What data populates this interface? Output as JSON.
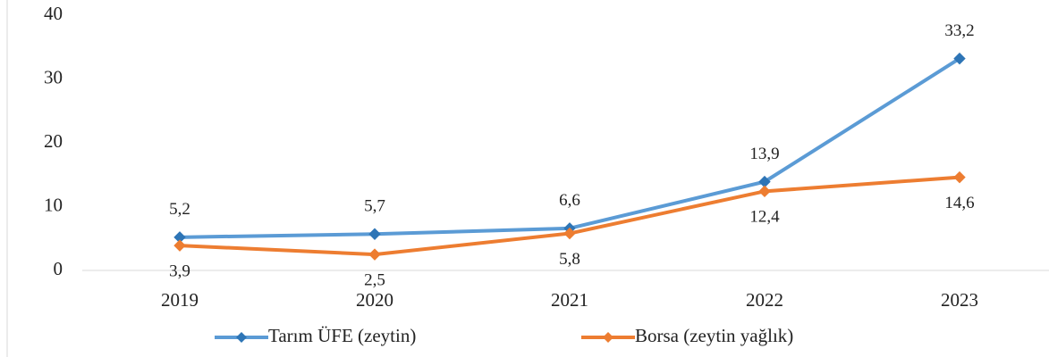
{
  "chart_data": {
    "type": "line",
    "categories": [
      "2019",
      "2020",
      "2021",
      "2022",
      "2023"
    ],
    "series": [
      {
        "name": "Tarım ÜFE (zeytin)",
        "color": "#5b9bd5",
        "marker_color": "#2e75b6",
        "label_position": "above",
        "values": [
          5.2,
          5.7,
          6.6,
          13.9,
          33.2
        ],
        "value_labels": [
          "5,2",
          "5,7",
          "6,6",
          "13,9",
          "33,2"
        ]
      },
      {
        "name": "Borsa (zeytin yağlık)",
        "color": "#ed7d31",
        "marker_color": "#ed7d31",
        "label_position": "below",
        "values": [
          3.9,
          2.5,
          5.8,
          12.4,
          14.6
        ],
        "value_labels": [
          "3,9",
          "2,5",
          "5,8",
          "12,4",
          "14,6"
        ]
      }
    ],
    "ylim": [
      0,
      40
    ],
    "yticks": [
      0,
      10,
      20,
      30,
      40
    ],
    "grid": false,
    "legend": "bottom"
  }
}
